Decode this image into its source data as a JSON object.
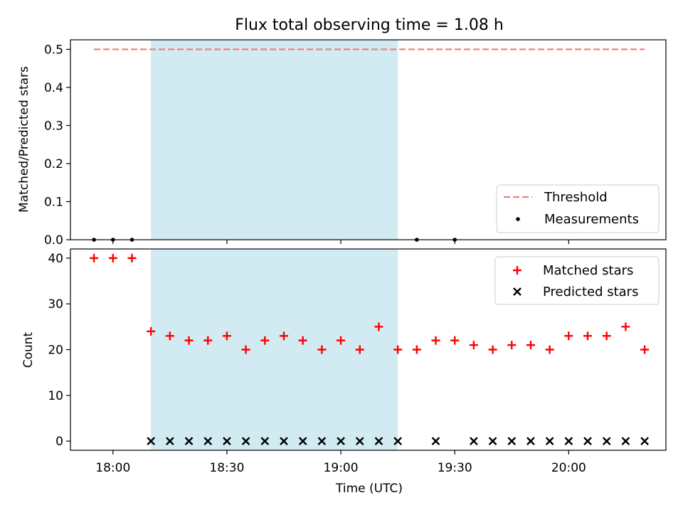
{
  "chart_data": [
    {
      "type": "line",
      "title": "Flux total observing time = 1.08 h",
      "ylabel": "Matched/Predicted stars",
      "ylim": [
        0,
        0.5
      ],
      "yticks": [
        "0.0",
        "0.1",
        "0.2",
        "0.3",
        "0.4",
        "0.5"
      ],
      "shaded_span": [
        "18:10",
        "19:15"
      ],
      "series": [
        {
          "name": "Threshold",
          "style": "dashed-line",
          "color": "#f08080",
          "x": [
            "17:55",
            "20:20"
          ],
          "y": [
            0.5,
            0.5
          ]
        },
        {
          "name": "Measurements",
          "style": "dot",
          "color": "#000000",
          "x": [
            "17:55",
            "18:00",
            "18:05",
            "19:20",
            "19:30"
          ],
          "y": [
            0,
            0,
            0,
            0,
            0
          ]
        }
      ],
      "legend": "bottom-right"
    },
    {
      "type": "scatter",
      "xlabel": "Time (UTC)",
      "ylabel": "Count",
      "ylim": [
        -2,
        42
      ],
      "yticks": [
        "0",
        "10",
        "20",
        "30",
        "40"
      ],
      "xticks": [
        "18:00",
        "18:30",
        "19:00",
        "19:30",
        "20:00"
      ],
      "shaded_span": [
        "18:10",
        "19:15"
      ],
      "series": [
        {
          "name": "Matched stars",
          "marker": "plus",
          "color": "#ff0000",
          "x": [
            "17:55",
            "18:00",
            "18:05",
            "18:10",
            "18:15",
            "18:20",
            "18:25",
            "18:30",
            "18:35",
            "18:40",
            "18:45",
            "18:50",
            "18:55",
            "19:00",
            "19:05",
            "19:10",
            "19:15",
            "19:20",
            "19:25",
            "19:30",
            "19:35",
            "19:40",
            "19:45",
            "19:50",
            "19:55",
            "20:00",
            "20:05",
            "20:10",
            "20:15",
            "20:20"
          ],
          "y": [
            40,
            40,
            40,
            24,
            23,
            22,
            22,
            23,
            20,
            22,
            23,
            22,
            20,
            22,
            20,
            25,
            20,
            20,
            22,
            22,
            21,
            20,
            21,
            21,
            20,
            23,
            23,
            23,
            25,
            20
          ]
        },
        {
          "name": "Predicted stars",
          "marker": "x",
          "color": "#000000",
          "x": [
            "18:10",
            "18:15",
            "18:20",
            "18:25",
            "18:30",
            "18:35",
            "18:40",
            "18:45",
            "18:50",
            "18:55",
            "19:00",
            "19:05",
            "19:10",
            "19:15",
            "19:25",
            "19:35",
            "19:40",
            "19:45",
            "19:50",
            "19:55",
            "20:00",
            "20:05",
            "20:10",
            "20:15",
            "20:20"
          ],
          "y": [
            0,
            0,
            0,
            0,
            0,
            0,
            0,
            0,
            0,
            0,
            0,
            0,
            0,
            0,
            0,
            0,
            0,
            0,
            0,
            0,
            0,
            0,
            0,
            0,
            0
          ]
        }
      ],
      "legend": "top-right"
    }
  ],
  "colors": {
    "span": "#add8e6",
    "threshold": "#f08080",
    "matched": "#ff0000",
    "predicted": "#000000"
  }
}
